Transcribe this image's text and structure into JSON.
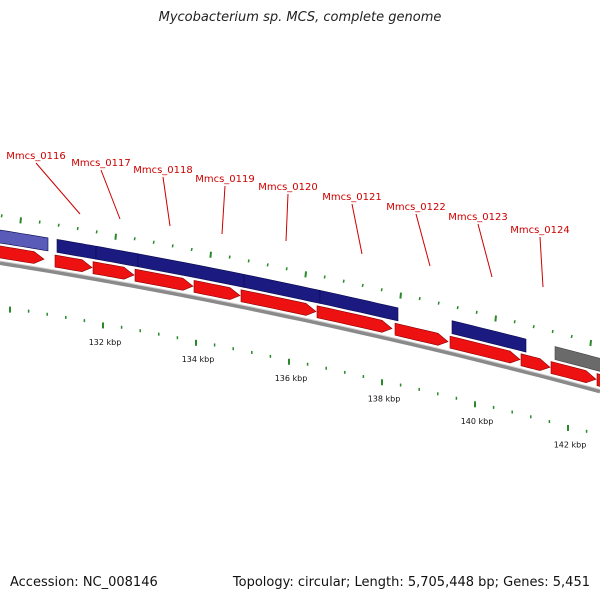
{
  "title": "Mycobacterium sp. MCS, complete genome",
  "footer": {
    "accession": "Accession: NC_008146",
    "summary": "Topology: circular; Length: 5,705,448 bp; Genes: 5,451"
  },
  "colors": {
    "forward": "#1a1a80",
    "reverse": "#ee1111",
    "other": "#6a6a6a",
    "label": "#cc0000",
    "tick": "#2a8a2a",
    "backbone": "#8a8a8a"
  },
  "scale_labels": [
    "132 kbp",
    "134 kbp",
    "136 kbp",
    "138 kbp",
    "140 kbp",
    "142 kbp"
  ],
  "genes": [
    {
      "label": "Mmcs_0116"
    },
    {
      "label": "Mmcs_0117"
    },
    {
      "label": "Mmcs_0118"
    },
    {
      "label": "Mmcs_0119"
    },
    {
      "label": "Mmcs_0120"
    },
    {
      "label": "Mmcs_0121"
    },
    {
      "label": "Mmcs_0122"
    },
    {
      "label": "Mmcs_0123"
    },
    {
      "label": "Mmcs_0124"
    }
  ]
}
